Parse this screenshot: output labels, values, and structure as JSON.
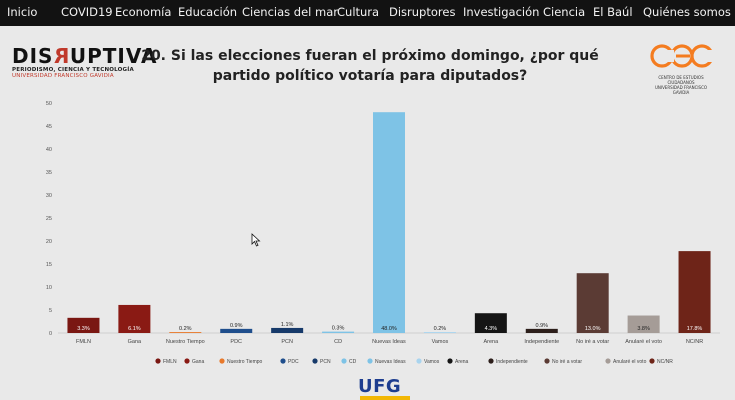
{
  "nav": {
    "items": [
      "Inicio",
      "COVID19",
      "Economía",
      "Educación",
      "Ciencias del mar",
      "Cultura",
      "Disruptores",
      "Investigación",
      "Ciencia",
      "El Baúl",
      "Quiénes somos"
    ]
  },
  "logo": {
    "name_left": "DIS",
    "name_rev": "R",
    "name_right": "UPTIVA",
    "line1": "PERIODISMO, CIENCIA Y TECNOLOGÍA",
    "line2": "UNIVERSIDAD FRANCISCO GAVIDIA"
  },
  "question": "20. Si las elecciones fueran el próximo domingo, ¿por qué partido político votaría para diputados?",
  "cec_logo": {
    "text": "cec",
    "caption1": "CENTRO DE ESTUDIOS CIUDADANOS",
    "caption2": "UNIVERSIDAD FRANCISCO GAVIDIA",
    "color": "#f47c20"
  },
  "footer_logo": "UFG",
  "chart_data": {
    "type": "bar",
    "categories": [
      "FMLN",
      "Gana",
      "Nuestro Tiempo",
      "PDC",
      "PCN",
      "CD",
      "Nuevas Ideas",
      "Vamos",
      "Arena",
      "Independiente",
      "No iré a votar",
      "Anularé el voto",
      "NC/NR"
    ],
    "values": [
      3.3,
      6.1,
      0.2,
      0.9,
      1.1,
      0.3,
      48.0,
      0.2,
      4.3,
      0.9,
      13.0,
      3.8,
      17.8
    ],
    "labels": [
      "3.3%",
      "6.1%",
      "0.2%",
      "0.9%",
      "1.1%",
      "0.3%",
      "48.0%",
      "0.2%",
      "4.3%",
      "0.9%",
      "13.0%",
      "3.8%",
      "17.8%"
    ],
    "colors": [
      "#7a1712",
      "#8a1a14",
      "#e8792b",
      "#1f4e8c",
      "#173a6a",
      "#7ec3e6",
      "#7ec3e6",
      "#a9d4ee",
      "#151515",
      "#2c1e1a",
      "#5b3b34",
      "#a59c97",
      "#6e2418"
    ],
    "legend": [
      "FMLN",
      "Gana",
      "Nuestro Tiempo",
      "PDC",
      "PCN",
      "CD",
      "Nuevas Ideas",
      "Vamos",
      "Arena",
      "Independiente",
      "No iré a votar",
      "Anularé el voto",
      "NC/NR"
    ],
    "yticks": [
      0,
      5,
      10,
      15,
      20,
      25,
      30,
      35,
      40,
      45,
      50
    ],
    "ylim": [
      0,
      50
    ],
    "grid": false,
    "legend_position": "bottom"
  }
}
